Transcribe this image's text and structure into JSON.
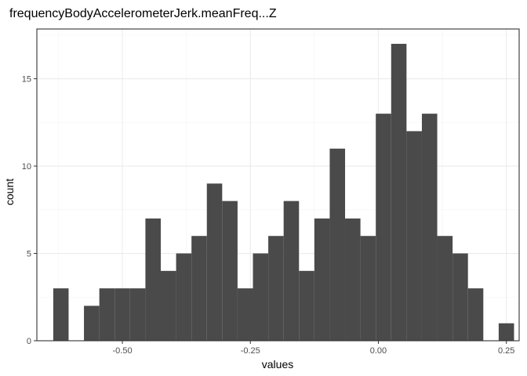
{
  "chart_data": {
    "type": "bar",
    "title": "frequencyBodyAccelerometerJerk.meanFreq...Z",
    "xlabel": "values",
    "ylabel": "count",
    "xlim": [
      -0.667,
      0.275
    ],
    "ylim": [
      0,
      17.85
    ],
    "x_ticks": [
      -0.5,
      -0.25,
      0.0,
      0.25
    ],
    "x_tick_labels": [
      "-0.50",
      "-0.25",
      "0.00",
      "0.25"
    ],
    "y_ticks": [
      0,
      5,
      10,
      15
    ],
    "y_tick_labels": [
      "0",
      "5",
      "10",
      "15"
    ],
    "grid": true,
    "bin_width": 0.03,
    "bins": [
      {
        "x": -0.62,
        "count": 3
      },
      {
        "x": -0.59,
        "count": 0
      },
      {
        "x": -0.56,
        "count": 2
      },
      {
        "x": -0.53,
        "count": 3
      },
      {
        "x": -0.5,
        "count": 3
      },
      {
        "x": -0.47,
        "count": 3
      },
      {
        "x": -0.44,
        "count": 7
      },
      {
        "x": -0.41,
        "count": 4
      },
      {
        "x": -0.38,
        "count": 5
      },
      {
        "x": -0.35,
        "count": 6
      },
      {
        "x": -0.32,
        "count": 9
      },
      {
        "x": -0.29,
        "count": 8
      },
      {
        "x": -0.26,
        "count": 3
      },
      {
        "x": -0.23,
        "count": 5
      },
      {
        "x": -0.2,
        "count": 6
      },
      {
        "x": -0.17,
        "count": 8
      },
      {
        "x": -0.14,
        "count": 4
      },
      {
        "x": -0.11,
        "count": 7
      },
      {
        "x": -0.08,
        "count": 11
      },
      {
        "x": -0.05,
        "count": 7
      },
      {
        "x": -0.02,
        "count": 6
      },
      {
        "x": 0.01,
        "count": 13
      },
      {
        "x": 0.04,
        "count": 17
      },
      {
        "x": 0.07,
        "count": 12
      },
      {
        "x": 0.1,
        "count": 13
      },
      {
        "x": 0.13,
        "count": 6
      },
      {
        "x": 0.16,
        "count": 5
      },
      {
        "x": 0.19,
        "count": 3
      },
      {
        "x": 0.22,
        "count": 0
      },
      {
        "x": 0.25,
        "count": 1
      }
    ],
    "colors": {
      "bar": "#4a4a4a",
      "panel": "#ffffff",
      "grid": "#ebebeb",
      "border": "#333333"
    }
  }
}
